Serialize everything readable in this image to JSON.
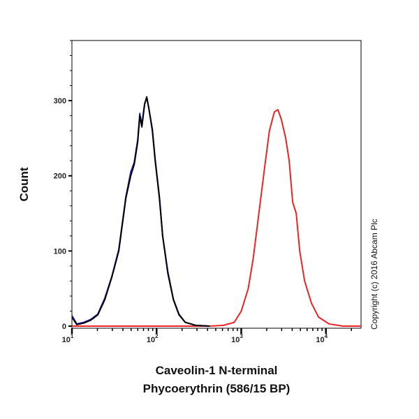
{
  "chart_data": {
    "type": "line",
    "title": "",
    "xlabel": "Caveolin-1 N-terminal",
    "xlabel_line2": "Phycoerythrin (586/15 BP)",
    "ylabel": "Count",
    "xscale": "log",
    "xlim": [
      10,
      26000
    ],
    "ylim": [
      0,
      380
    ],
    "grid": false,
    "yticks": [
      0,
      100,
      200,
      300
    ],
    "xticks": [
      {
        "base": "10",
        "exp": "1",
        "value": 10
      },
      {
        "base": "10",
        "exp": "2",
        "value": 100
      },
      {
        "base": "10",
        "exp": "3",
        "value": 1000
      },
      {
        "base": "10",
        "exp": "4",
        "value": 10000
      }
    ],
    "series": [
      {
        "color": "#ee2222",
        "x": [
          10,
          424,
          617,
          826,
          1000,
          1209,
          1386,
          1616,
          1884,
          2153,
          2460,
          2708,
          2979,
          3346,
          3684,
          4052,
          4459,
          4906,
          5600,
          6780,
          8200,
          10900,
          15900,
          26000
        ],
        "y": [
          0,
          0,
          1,
          5,
          20,
          50,
          90,
          150,
          210,
          260,
          285,
          288,
          275,
          250,
          220,
          165,
          150,
          100,
          60,
          30,
          12,
          3,
          0,
          0
        ]
      },
      {
        "color": "#2222cc",
        "x": [
          10,
          11.4,
          13.8,
          16.7,
          20.2,
          24.4,
          29.6,
          35.8,
          43.3,
          49.5,
          54.4,
          59.9,
          63.3,
          66.9,
          72.2,
          76.5,
          80.9,
          89.1,
          96.2,
          108,
          118,
          136,
          158,
          184,
          218,
          290,
          424
        ],
        "y": [
          14,
          3,
          5,
          9,
          16,
          37,
          66,
          102,
          172,
          205,
          218,
          248,
          283,
          268,
          296,
          304,
          290,
          262,
          222,
          172,
          120,
          72,
          36,
          16,
          5,
          1,
          0
        ]
      },
      {
        "color": "#000000",
        "x": [
          10,
          11.4,
          13.8,
          16.7,
          20.2,
          24.4,
          29.6,
          35.8,
          43.3,
          49.5,
          54.4,
          59.9,
          63.3,
          66.9,
          72.2,
          76.5,
          80.9,
          89.1,
          96.2,
          108,
          118,
          136,
          158,
          184,
          218,
          290,
          424
        ],
        "y": [
          12,
          2,
          4,
          8,
          15,
          35,
          65,
          100,
          170,
          200,
          215,
          245,
          280,
          265,
          295,
          305,
          290,
          260,
          220,
          170,
          120,
          70,
          35,
          15,
          5,
          1,
          0
        ]
      }
    ]
  },
  "copyright": "Copyright (c) 2016 Abcam Plc"
}
